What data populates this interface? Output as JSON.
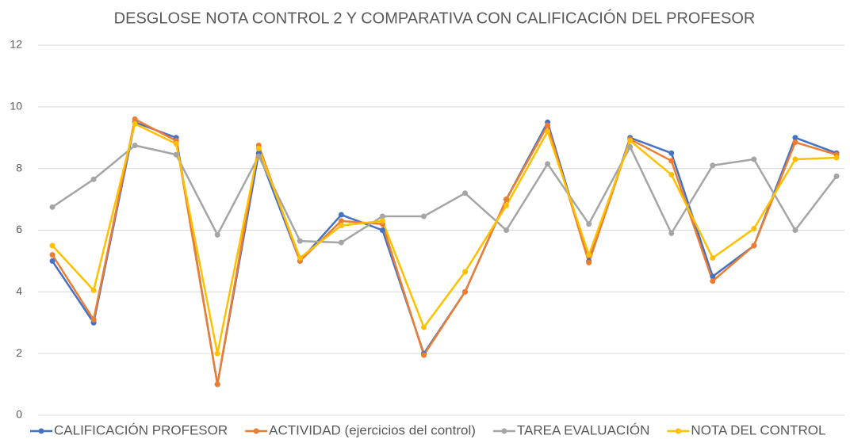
{
  "chart_data": {
    "type": "line",
    "title": "DESGLOSE NOTA CONTROL 2 Y COMPARATIVA CON CALIFICACIÓN DEL PROFESOR",
    "categories": [
      null,
      null,
      null,
      null,
      null,
      null,
      null,
      null,
      null,
      null,
      null,
      null,
      null,
      null,
      null,
      null,
      null,
      null,
      null,
      null
    ],
    "series": [
      {
        "name": "CALIFICACIÓN PROFESOR",
        "color": "#4472c4",
        "values": [
          5,
          3,
          9.5,
          9,
          1,
          8.5,
          5,
          6.5,
          6,
          2,
          4,
          7,
          9.5,
          5,
          9,
          8.5,
          4.5,
          5.5,
          9,
          8.5
        ]
      },
      {
        "name": "ACTIVIDAD (ejercicios del control)",
        "color": "#ed7d31",
        "values": [
          5.2,
          3.1,
          9.6,
          8.9,
          1.0,
          8.75,
          5.0,
          6.3,
          6.2,
          1.95,
          4.0,
          7.0,
          9.4,
          4.95,
          8.95,
          8.25,
          4.35,
          5.5,
          8.85,
          8.45
        ]
      },
      {
        "name": "TAREA EVALUACIÓN",
        "color": "#a5a5a5",
        "values": [
          6.75,
          7.65,
          8.75,
          8.45,
          5.85,
          8.4,
          5.65,
          5.6,
          6.45,
          6.45,
          7.2,
          6.0,
          8.15,
          6.2,
          8.7,
          5.9,
          8.1,
          8.3,
          6.0,
          7.75
        ]
      },
      {
        "name": "NOTA DEL CONTROL",
        "color": "#ffc000",
        "values": [
          5.5,
          4.05,
          9.45,
          8.8,
          2.0,
          8.65,
          5.1,
          6.15,
          6.3,
          2.85,
          4.65,
          6.8,
          9.2,
          5.2,
          8.9,
          7.8,
          5.1,
          6.05,
          8.3,
          8.35
        ]
      }
    ],
    "ylim": [
      0,
      12
    ],
    "yticks": [
      0,
      2,
      4,
      6,
      8,
      10,
      12
    ],
    "grid": true,
    "legend": "bottom"
  }
}
